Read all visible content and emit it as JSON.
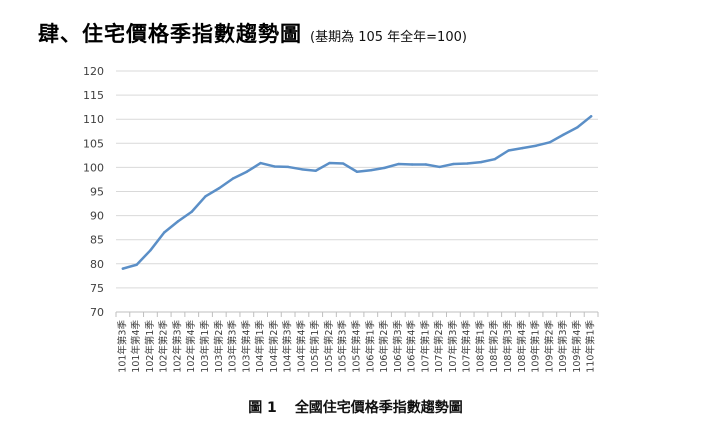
{
  "header": {
    "title": "肆、住宅價格季指數趨勢圖",
    "subtitle": "(基期為 105 年全年=100)"
  },
  "caption": {
    "figure_number": "圖 1",
    "text": "全國住宅價格季指數趨勢圖"
  },
  "chart_data": {
    "type": "line",
    "ylim": [
      70,
      120
    ],
    "yticks": [
      70,
      75,
      80,
      85,
      90,
      95,
      100,
      105,
      110,
      115,
      120
    ],
    "grid": true,
    "line_color": "#5B8FC7",
    "categories": [
      "101年第3季",
      "101年第4季",
      "102年第1季",
      "102年第2季",
      "102年第3季",
      "102年第4季",
      "103年第1季",
      "103年第2季",
      "103年第3季",
      "103年第4季",
      "104年第1季",
      "104年第2季",
      "104年第3季",
      "104年第4季",
      "105年第1季",
      "105年第2季",
      "105年第3季",
      "105年第4季",
      "106年第1季",
      "106年第2季",
      "106年第3季",
      "106年第4季",
      "107年第1季",
      "107年第2季",
      "107年第3季",
      "107年第4季",
      "108年第1季",
      "108年第2季",
      "108年第3季",
      "108年第4季",
      "109年第1季",
      "109年第2季",
      "109年第3季",
      "109年第4季",
      "110年第1季"
    ],
    "values": [
      79.0,
      79.8,
      82.8,
      86.5,
      88.8,
      90.8,
      94.0,
      95.7,
      97.7,
      99.1,
      100.9,
      100.2,
      100.1,
      99.6,
      99.3,
      100.9,
      100.8,
      99.1,
      99.4,
      99.9,
      100.7,
      100.6,
      100.6,
      100.1,
      100.7,
      100.8,
      101.1,
      101.7,
      103.5,
      104.0,
      104.5,
      105.2,
      106.8,
      108.3,
      110.6
    ]
  }
}
